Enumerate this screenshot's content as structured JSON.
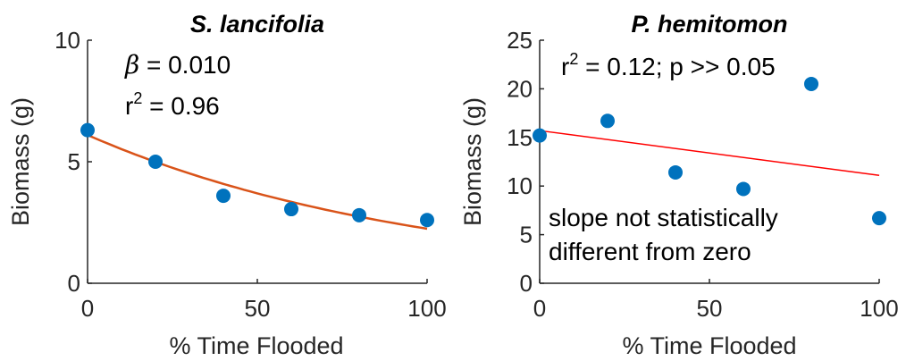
{
  "chart_data": [
    {
      "type": "scatter",
      "title": "S. lancifolia",
      "xlabel": "% Time Flooded",
      "ylabel": "Biomass (g)",
      "xlim": [
        0,
        100
      ],
      "ylim": [
        0,
        10
      ],
      "xticks": [
        "0",
        "50",
        "100"
      ],
      "yticks": [
        "0",
        "5",
        "10"
      ],
      "series": [
        {
          "x": [
            0,
            20,
            40,
            60,
            80,
            100
          ],
          "y": [
            6.3,
            5.0,
            3.6,
            3.05,
            2.8,
            2.6
          ],
          "color": "#0072BD"
        }
      ],
      "fit": {
        "type": "exponential",
        "a": 6.1,
        "beta": 0.01,
        "color": "#D95319"
      },
      "annotations": [
        "β = 0.010",
        "r2 = 0.96"
      ]
    },
    {
      "type": "scatter",
      "title": "P. hemitomon",
      "xlabel": "% Time Flooded",
      "ylabel": "Biomass (g)",
      "xlim": [
        0,
        100
      ],
      "ylim": [
        0,
        25
      ],
      "xticks": [
        "0",
        "50",
        "100"
      ],
      "yticks": [
        "0",
        "5",
        "10",
        "15",
        "20",
        "25"
      ],
      "series": [
        {
          "x": [
            0,
            20,
            40,
            60,
            80,
            100
          ],
          "y": [
            15.2,
            16.7,
            11.4,
            9.7,
            20.5,
            6.7
          ],
          "color": "#0072BD"
        }
      ],
      "fit": {
        "type": "linear",
        "y0": 15.7,
        "y100": 11.1,
        "color": "#FF0000"
      },
      "annotations": [
        "r2 = 0.12; p >> 0.05",
        "slope not statistically",
        "different from zero"
      ]
    }
  ]
}
